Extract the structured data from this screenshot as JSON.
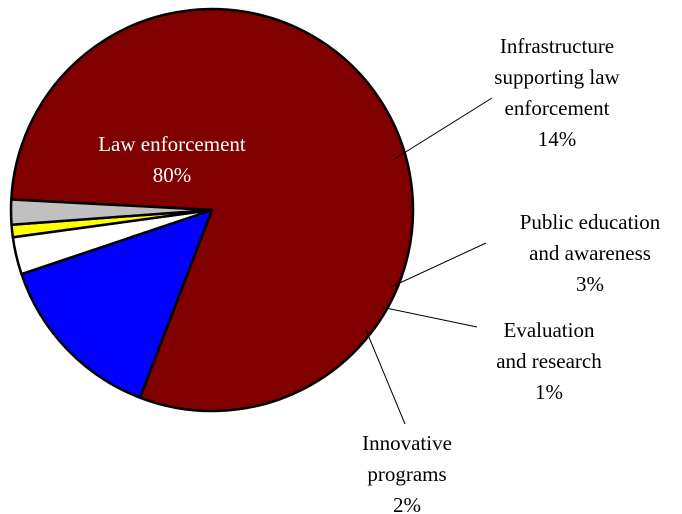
{
  "chart_data": {
    "type": "pie",
    "slices": [
      {
        "label": "Law enforcement",
        "label_lines": [
          "Law enforcement",
          "80%"
        ],
        "value": 80,
        "color": "#800000"
      },
      {
        "label": "Infrastructure supporting law enforcement",
        "label_lines": [
          "Infrastructure",
          "supporting law",
          "enforcement",
          "14%"
        ],
        "value": 14,
        "color": "#0000FF"
      },
      {
        "label": "Public education and awareness",
        "label_lines": [
          "Public education",
          "and awareness",
          "3%"
        ],
        "value": 3,
        "color": "#FFFFFF"
      },
      {
        "label": "Evaluation and research",
        "label_lines": [
          "Evaluation",
          "and research",
          "1%"
        ],
        "value": 1,
        "color": "#FFFF00"
      },
      {
        "label": "Innovative programs",
        "label_lines": [
          "Innovative",
          "programs",
          "2%"
        ],
        "value": 2,
        "color": "#C0C0C0"
      }
    ]
  }
}
